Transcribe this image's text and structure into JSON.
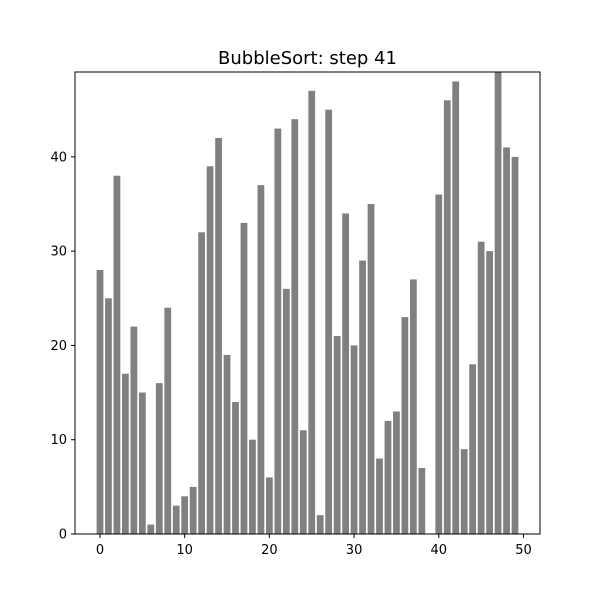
{
  "chart_data": {
    "type": "bar",
    "title": "BubbleSort: step 41",
    "xlabel": "",
    "ylabel": "",
    "x": [
      0,
      1,
      2,
      3,
      4,
      5,
      6,
      7,
      8,
      9,
      10,
      11,
      12,
      13,
      14,
      15,
      16,
      17,
      18,
      19,
      20,
      21,
      22,
      23,
      24,
      25,
      26,
      27,
      28,
      29,
      30,
      31,
      32,
      33,
      34,
      35,
      36,
      37,
      38,
      39,
      40,
      41,
      42,
      43,
      44,
      45,
      46,
      47,
      48,
      49
    ],
    "values": [
      28,
      25,
      38,
      17,
      22,
      15,
      1,
      16,
      24,
      3,
      4,
      5,
      32,
      39,
      42,
      19,
      14,
      33,
      10,
      37,
      6,
      43,
      26,
      44,
      11,
      47,
      2,
      45,
      21,
      34,
      20,
      29,
      35,
      8,
      12,
      13,
      23,
      27,
      7,
      0,
      36,
      46,
      48,
      9,
      18,
      31,
      30,
      49,
      41,
      40
    ],
    "xlim": [
      -2.95,
      51.95
    ],
    "ylim": [
      0,
      49
    ],
    "xticks": [
      0,
      10,
      20,
      30,
      40,
      50
    ],
    "yticks": [
      0,
      10,
      20,
      30,
      40
    ],
    "bar_color": "#808080",
    "grid": false,
    "legend": "none"
  }
}
